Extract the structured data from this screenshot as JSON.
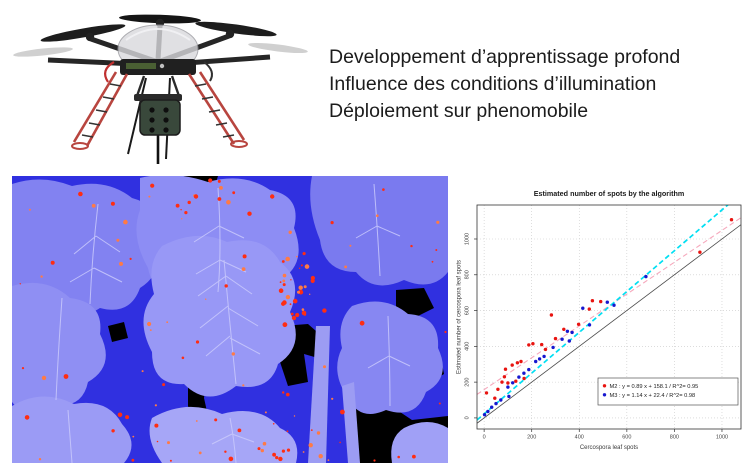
{
  "slide": {
    "title_lines": [
      "Developpement d’apprentissage profond",
      "Influence des  conditions d’illumination",
      "Déploiement sur phenomobile"
    ]
  },
  "images": {
    "drone": {
      "alt": "hexacopter drone carrying a multispectral camera payload"
    },
    "leaf_analysis": {
      "alt": "blue false-color sugar-beet leaf image with detected cercospora spots shown in red",
      "background_color": "#3030e0",
      "leaf_colors": [
        "#8282f1",
        "#8d8df4",
        "#7a7aef",
        "#8f8ff3",
        "#9898f6",
        "#9b9bf5",
        "#a6a6f7",
        "#8787f2",
        "#a0a0f6"
      ],
      "vein_color": "#cacafc",
      "gap_color": "#000000",
      "spot_color": "#ff2d12",
      "spot_color_soft": "#ff7a45",
      "spots": {
        "scattered": 70,
        "cluster": 30,
        "bottom_band": 25,
        "top_band": 12
      }
    }
  },
  "chart_data": {
    "type": "scatter",
    "title": "Estimated number of spots by the algorithm",
    "xlabel": "Cercospora leaf spots",
    "ylabel": "Estimated number of cercospora leaf spots",
    "xlim": [
      -30,
      1080
    ],
    "ylim": [
      -62,
      1190
    ],
    "xticks": [
      0,
      200,
      400,
      600,
      800,
      1000
    ],
    "yticks": [
      0,
      200,
      400,
      600,
      800,
      1000
    ],
    "grid": true,
    "identity_line": {
      "color": "#4a4a4a",
      "style": "solid"
    },
    "legend": {
      "position": "bottom-right"
    },
    "series": [
      {
        "name": "M2",
        "point_color": "#e81410",
        "fit_color": "#f6a8bc",
        "fit_dash": true,
        "slope": 0.89,
        "intercept": 158.1,
        "r2": 0.95,
        "legend_label": "M2 : y = 0.89 x + 158.1  / R^2= 0.95",
        "points": [
          [
            10,
            140
          ],
          [
            45,
            110
          ],
          [
            58,
            160
          ],
          [
            75,
            200
          ],
          [
            85,
            230
          ],
          [
            90,
            272
          ],
          [
            100,
            195
          ],
          [
            118,
            295
          ],
          [
            133,
            205
          ],
          [
            140,
            308
          ],
          [
            155,
            315
          ],
          [
            168,
            220
          ],
          [
            188,
            408
          ],
          [
            205,
            415
          ],
          [
            242,
            410
          ],
          [
            258,
            383
          ],
          [
            283,
            575
          ],
          [
            300,
            443
          ],
          [
            335,
            495
          ],
          [
            397,
            523
          ],
          [
            442,
            608
          ],
          [
            455,
            655
          ],
          [
            490,
            650
          ],
          [
            907,
            926
          ],
          [
            1040,
            1108
          ]
        ]
      },
      {
        "name": "M3",
        "point_color": "#1717cf",
        "fit_color": "#00dff2",
        "fit_dash": true,
        "slope": 1.14,
        "intercept": 22.4,
        "r2": 0.98,
        "legend_label": "M3 : y = 1.14 x + 22.4  / R^2= 0.98",
        "points": [
          [
            2,
            18
          ],
          [
            16,
            36
          ],
          [
            32,
            60
          ],
          [
            50,
            80
          ],
          [
            70,
            100
          ],
          [
            100,
            172
          ],
          [
            104,
            120
          ],
          [
            120,
            196
          ],
          [
            146,
            228
          ],
          [
            167,
            250
          ],
          [
            188,
            270
          ],
          [
            217,
            315
          ],
          [
            233,
            330
          ],
          [
            252,
            344
          ],
          [
            290,
            394
          ],
          [
            328,
            440
          ],
          [
            350,
            484
          ],
          [
            358,
            430
          ],
          [
            370,
            478
          ],
          [
            415,
            613
          ],
          [
            443,
            520
          ],
          [
            518,
            647
          ],
          [
            546,
            630
          ],
          [
            680,
            790
          ]
        ]
      }
    ]
  }
}
